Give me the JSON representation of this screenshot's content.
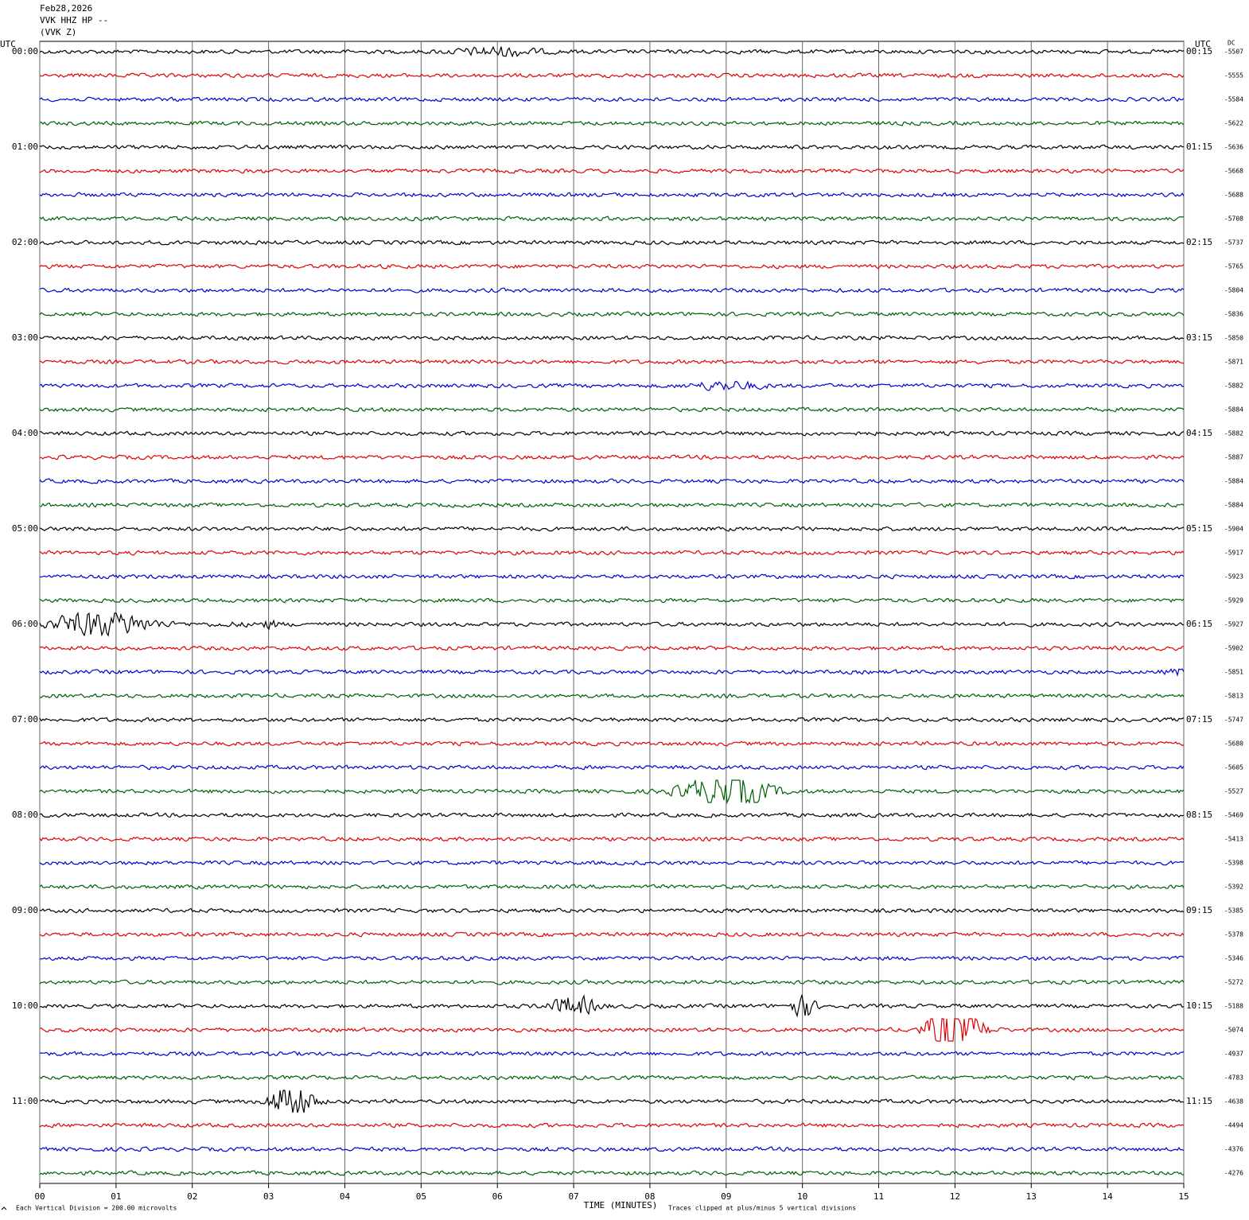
{
  "chart_data": {
    "type": "seismogram",
    "header": [
      "Feb28,2026",
      "VVK HHZ HP --",
      "(VVK Z)"
    ],
    "left_axis_title": "UTC",
    "right_axis_title": "UTC",
    "dc_title": "DC",
    "left_labels": [
      "00:00",
      "01:00",
      "02:00",
      "03:00",
      "04:00",
      "05:00",
      "06:00",
      "07:00",
      "08:00",
      "09:00",
      "10:00",
      "11:00"
    ],
    "right_labels": [
      "00:15",
      "01:15",
      "02:15",
      "03:15",
      "04:15",
      "05:15",
      "06:15",
      "07:15",
      "08:15",
      "09:15",
      "10:15",
      "11:15"
    ],
    "dc_values": [
      -5507,
      -5555,
      -5584,
      -5622,
      -5636,
      -5668,
      -5688,
      -5708,
      -5737,
      -5765,
      -5804,
      -5836,
      -5850,
      -5871,
      -5882,
      -5884,
      -5882,
      -5887,
      -5884,
      -5884,
      -5904,
      -5917,
      -5923,
      -5929,
      -5927,
      -5902,
      -5851,
      -5813,
      -5747,
      -5680,
      -5605,
      -5527,
      -5469,
      -5413,
      -5398,
      -5392,
      -5385,
      -5378,
      -5346,
      -5272,
      -5188,
      -5074,
      -4937,
      -4783,
      -4638,
      -4494,
      -4376,
      -4276
    ],
    "colors": [
      "#000000",
      "#e00000",
      "#0000d0",
      "#006000"
    ],
    "xlim": [
      0,
      15
    ],
    "xticks": [
      {
        "value": 0,
        "label": "00"
      },
      {
        "value": 1,
        "label": "01"
      },
      {
        "value": 2,
        "label": "02"
      },
      {
        "value": 3,
        "label": "03"
      },
      {
        "value": 4,
        "label": "04"
      },
      {
        "value": 5,
        "label": "05"
      },
      {
        "value": 6,
        "label": "06"
      },
      {
        "value": 7,
        "label": "07"
      },
      {
        "value": 8,
        "label": "08"
      },
      {
        "value": 9,
        "label": "09"
      },
      {
        "value": 10,
        "label": "10"
      },
      {
        "value": 11,
        "label": "11"
      },
      {
        "value": 12,
        "label": "12"
      },
      {
        "value": 13,
        "label": "13"
      },
      {
        "value": 14,
        "label": "14"
      },
      {
        "value": 15,
        "label": "15"
      }
    ],
    "xlabel": "TIME (MINUTES)",
    "footer_left": "Each Vertical Division =  200.00 microvolts",
    "footer_right": "Traces clipped at plus/minus 5 vertical divisions",
    "grid": true
  }
}
